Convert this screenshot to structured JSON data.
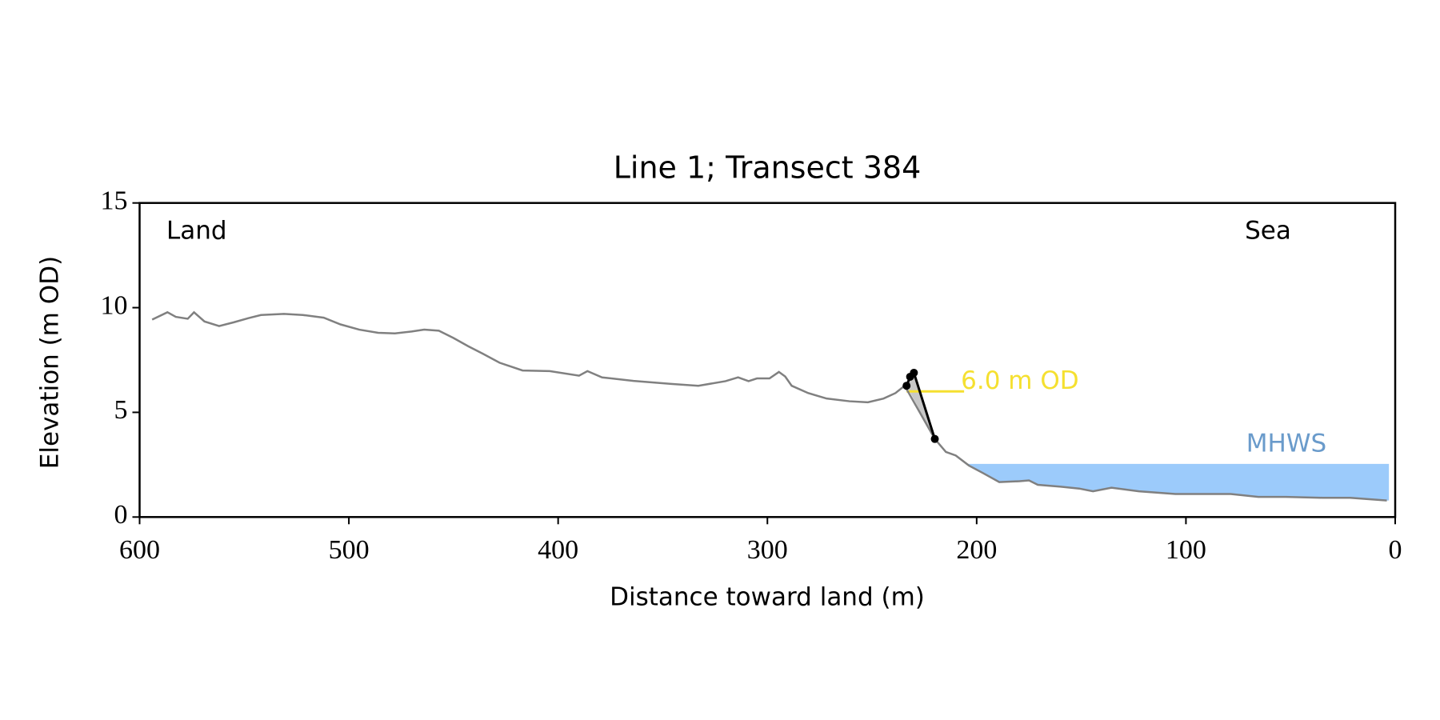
{
  "chart_data": {
    "type": "line",
    "title": "Line 1; Transect 384",
    "xlabel": "Distance toward land (m)",
    "ylabel": "Elevation (m OD)",
    "xlim": [
      600,
      0
    ],
    "ylim": [
      0,
      15
    ],
    "xticks": [
      600,
      500,
      400,
      300,
      200,
      100,
      0
    ],
    "yticks": [
      0,
      5,
      10,
      15
    ],
    "series": [
      {
        "color": "#808080",
        "x": [
          594,
          586.7,
          582.7,
          577,
          574,
          569,
          562,
          555,
          548,
          542,
          531,
          522,
          512,
          504,
          495,
          486,
          478,
          470,
          464,
          457,
          450,
          443,
          436,
          428,
          417,
          404,
          390,
          386,
          379,
          364,
          346,
          333,
          320,
          314,
          309,
          305,
          299,
          294.5,
          291.5,
          288.4,
          280.5,
          271.7,
          260.8,
          252,
          244.5,
          238.8,
          234.4,
          220,
          214.7,
          210,
          203.7,
          197,
          189.2,
          179.5,
          175,
          170.8,
          159.8,
          151,
          144.4,
          135.6,
          122.5,
          105,
          96,
          78.6,
          65.4,
          52.2,
          34.7,
          21.5,
          4
        ],
        "values": [
          9.43,
          9.78,
          9.56,
          9.47,
          9.78,
          9.34,
          9.12,
          9.3,
          9.5,
          9.65,
          9.7,
          9.65,
          9.52,
          9.2,
          8.95,
          8.8,
          8.77,
          8.86,
          8.95,
          8.9,
          8.55,
          8.16,
          7.8,
          7.37,
          7.0,
          6.97,
          6.75,
          6.97,
          6.67,
          6.5,
          6.36,
          6.27,
          6.49,
          6.67,
          6.49,
          6.62,
          6.62,
          6.93,
          6.71,
          6.27,
          5.92,
          5.66,
          5.53,
          5.48,
          5.66,
          5.92,
          6.27,
          3.73,
          3.11,
          2.94,
          2.46,
          2.1,
          1.67,
          1.71,
          1.75,
          1.54,
          1.45,
          1.36,
          1.23,
          1.4,
          1.23,
          1.1,
          1.1,
          1.1,
          0.96,
          0.96,
          0.92,
          0.92,
          0.79
        ]
      },
      {
        "color": "#000000",
        "markers": true,
        "x": [
          233.5,
          231.8,
          230,
          220
        ],
        "values": [
          6.27,
          6.7,
          6.89,
          3.73
        ]
      }
    ],
    "cliff_fill": "#c8c8c8",
    "land_label": "Land",
    "sea_label": "Sea",
    "mhws": {
      "label": "MHWS",
      "value": 2.54,
      "x": [
        204,
        3
      ],
      "color": "#9ccbfb",
      "label_color": "#6a9bcb"
    },
    "level": {
      "label": "6.0 m OD",
      "value": 6.0,
      "x": [
        233.5,
        206
      ],
      "color": "#f5e030"
    }
  }
}
